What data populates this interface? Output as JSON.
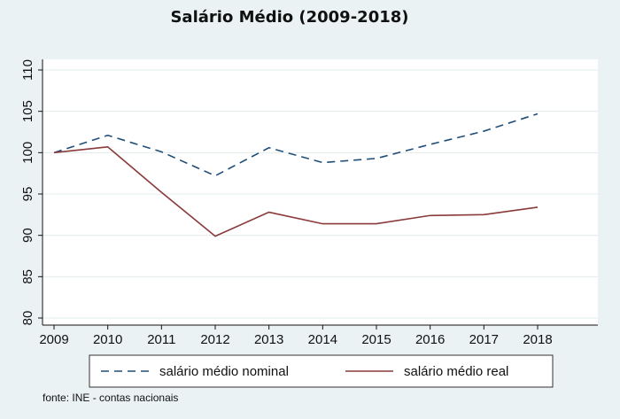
{
  "chart_data": {
    "type": "line",
    "title": "Salário Médio (2009-2018)",
    "xlabel": "",
    "ylabel": "",
    "x": [
      2009,
      2010,
      2011,
      2012,
      2013,
      2014,
      2015,
      2016,
      2017,
      2018
    ],
    "x_ticks": [
      "2009",
      "2010",
      "2011",
      "2012",
      "2013",
      "2014",
      "2015",
      "2016",
      "2017",
      "2018"
    ],
    "ylim": [
      80,
      110
    ],
    "y_ticks": [
      "80",
      "85",
      "90",
      "95",
      "100",
      "105",
      "110"
    ],
    "grid": true,
    "legend_position": "bottom",
    "series": [
      {
        "name": "salário médio nominal",
        "color": "#1f4e79",
        "style": "dashed",
        "values": [
          100,
          102.1,
          100.1,
          97.2,
          100.6,
          98.8,
          99.3,
          101.0,
          102.6,
          104.7
        ]
      },
      {
        "name": "salário médio real",
        "color": "#8b3a3a",
        "style": "solid",
        "values": [
          100,
          100.7,
          95.2,
          89.9,
          92.8,
          91.4,
          91.4,
          92.4,
          92.5,
          93.4
        ]
      }
    ],
    "source_note": "fonte: INE - contas nacionais"
  }
}
